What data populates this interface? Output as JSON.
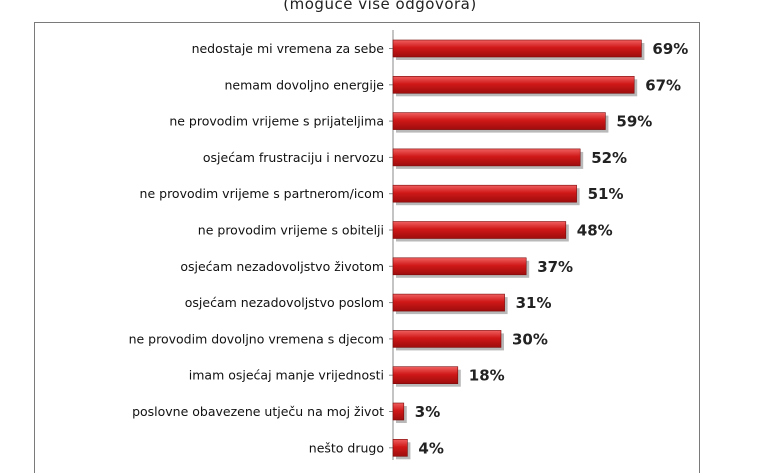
{
  "chart_data": {
    "type": "bar",
    "orientation": "horizontal",
    "subtitle": "(moguće više odgovora)",
    "categories": [
      "nedostaje mi vremena za sebe",
      "nemam dovoljno energije",
      "ne provodim vrijeme s prijateljima",
      "osjećam frustraciju i nervozu",
      "ne provodim vrijeme s partnerom/icom",
      "ne provodim vrijeme s obitelji",
      "osjećam nezadovoljstvo životom",
      "osjećam nezadovoljstvo poslom",
      "ne provodim dovoljno vremena s djecom",
      "imam osjećaj manje vrijednosti",
      "poslovne obavezene utječu na moj život",
      "nešto drugo"
    ],
    "values": [
      69,
      67,
      59,
      52,
      51,
      48,
      37,
      31,
      30,
      18,
      3,
      4
    ],
    "value_labels": [
      "69%",
      "67%",
      "59%",
      "52%",
      "51%",
      "48%",
      "37%",
      "31%",
      "30%",
      "18%",
      "3%",
      "4%"
    ],
    "unit": "%",
    "bar_color": "#d01818",
    "grid": false,
    "legend": "none"
  }
}
